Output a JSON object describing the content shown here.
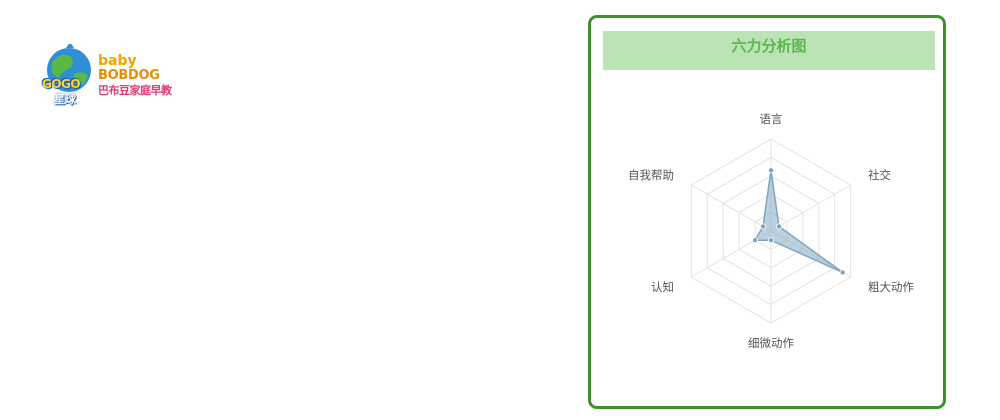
{
  "logo": {
    "baby": "baby",
    "bobdog": "BOBDOG",
    "slogan": "巴布豆家庭早教",
    "gogo": "GOGO",
    "star": "星球"
  },
  "panel": {
    "title": "六力分析图"
  },
  "colors": {
    "panel_border": "#3f8f2f",
    "title_bg": "#bbe4b5",
    "title_text": "#5fb54e",
    "series_fill": "#8fb3c7",
    "series_line": "#7fa6be"
  },
  "chart_data": {
    "type": "radar",
    "title": "六力分析图",
    "axes": [
      "语言",
      "社交",
      "粗大动作",
      "细微动作",
      "认知",
      "自我帮助"
    ],
    "max": 100,
    "levels": 5,
    "series": [
      {
        "values": [
          66,
          10,
          90,
          10,
          20,
          10
        ]
      }
    ]
  }
}
